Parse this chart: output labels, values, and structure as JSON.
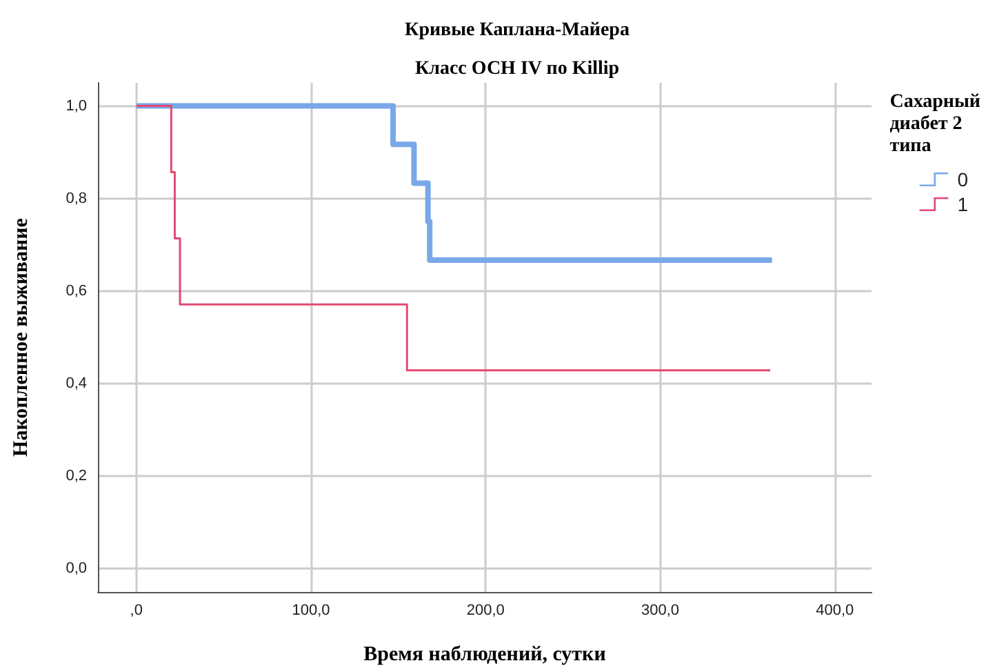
{
  "chart_data": {
    "type": "step",
    "title": "Кривые Каплана-Майера",
    "subtitle": "Класс ОСН IV по Killip",
    "xlabel": "Время наблюдений, сутки",
    "ylabel": "Накопленное выживание",
    "legend_title": "Сахарный диабет 2 типа",
    "legend": "right",
    "grid": true,
    "marker": "none",
    "line_style": "solid",
    "xlim": [
      -22,
      421
    ],
    "ylim": [
      -0.05,
      1.05
    ],
    "xticks": [
      {
        "value": 0,
        "label": ",0"
      },
      {
        "value": 100,
        "label": "100,0"
      },
      {
        "value": 200,
        "label": "200,0"
      },
      {
        "value": 300,
        "label": "300,0"
      },
      {
        "value": 400,
        "label": "400,0"
      }
    ],
    "yticks": [
      {
        "value": 0,
        "label": "0,0"
      },
      {
        "value": 0.2,
        "label": "0,2"
      },
      {
        "value": 0.4,
        "label": "0,4"
      },
      {
        "value": 0.6,
        "label": "0,6"
      },
      {
        "value": 0.8,
        "label": "0,8"
      },
      {
        "value": 1,
        "label": "1,0"
      }
    ],
    "series": [
      {
        "name": "0",
        "color": "#79a8e8",
        "x": [
          0,
          147,
          159,
          167,
          168,
          364
        ],
        "values": [
          1,
          0.917,
          0.833,
          0.75,
          0.667,
          0.667
        ]
      },
      {
        "name": "1",
        "color": "#e24a72",
        "x": [
          0,
          20,
          22,
          25,
          155,
          363
        ],
        "values": [
          1,
          0.857,
          0.714,
          0.571,
          0.429,
          0.429
        ]
      }
    ]
  }
}
